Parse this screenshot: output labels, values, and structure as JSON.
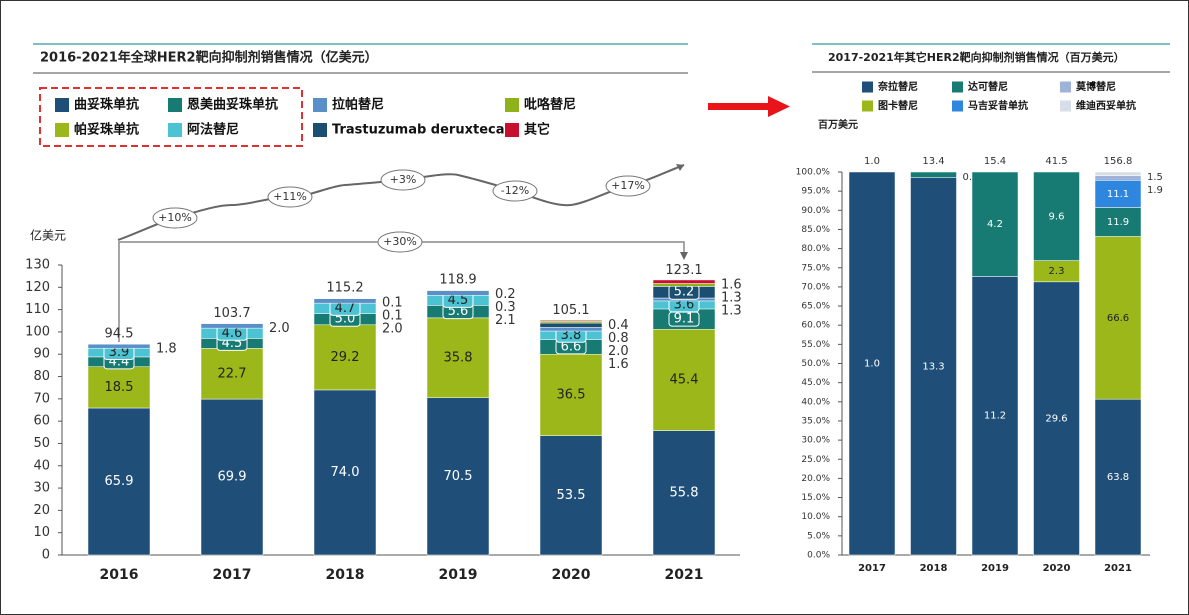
{
  "chart_data": [
    {
      "type": "stacked_bar",
      "title": "2016-2021年全球HER2靶向抑制剂销售情况（亿美元）",
      "y_label": "亿美元",
      "categories": [
        "2016",
        "2017",
        "2018",
        "2019",
        "2020",
        "2021"
      ],
      "ylim": [
        0,
        130
      ],
      "yticks": [
        0,
        10,
        20,
        30,
        40,
        50,
        60,
        70,
        80,
        90,
        100,
        110,
        120,
        130
      ],
      "grid": false,
      "series": [
        {
          "name": "曲妥珠单抗",
          "color": "#1f4e79",
          "values": [
            65.9,
            69.9,
            74.0,
            70.5,
            53.5,
            55.8
          ],
          "value_labels": [
            "65.9",
            "69.9",
            "74.0",
            "70.5",
            "53.5",
            "55.8"
          ]
        },
        {
          "name": "帕妥珠单抗",
          "color": "#9cb71a",
          "values": [
            18.5,
            22.7,
            29.2,
            35.8,
            36.5,
            45.4
          ]
        },
        {
          "name": "恩美曲妥珠单抗",
          "color": "#177a73",
          "values": [
            4.4,
            4.5,
            5.0,
            5.6,
            6.6,
            9.1
          ],
          "value_labels": [
            "4.4",
            "4.5",
            "5.0",
            "5.6",
            "6.6",
            "9.1"
          ]
        },
        {
          "name": "阿法替尼",
          "color": "#4cc3d3",
          "values": [
            3.9,
            4.6,
            4.7,
            4.5,
            3.8,
            3.6
          ]
        },
        {
          "name": "拉帕替尼",
          "color": "#5b8fc9",
          "values": [
            1.8,
            2.0,
            2.0,
            2.1,
            1.6,
            1.3
          ],
          "value_labels": [
            "1.8",
            "2.0",
            "2.0",
            "2.1",
            "1.6",
            "1.3"
          ]
        },
        {
          "name": "Trastuzumab deruxtecan",
          "color": "#1a4f72",
          "values": [
            null,
            null,
            null,
            null,
            2.0,
            5.2
          ],
          "value_labels": [
            null,
            null,
            null,
            null,
            "2.0",
            "5.2"
          ]
        },
        {
          "name": "吡咯替尼",
          "color": "#8fb21a",
          "values": [
            null,
            null,
            0.1,
            0.3,
            0.8,
            1.3
          ]
        },
        {
          "name": "其它",
          "color": "#c8102e",
          "values": [
            null,
            null,
            0.1,
            0.2,
            0.4,
            1.6
          ]
        }
      ],
      "totals": [
        94.5,
        103.7,
        115.2,
        118.9,
        105.1,
        123.1
      ],
      "annotations": [
        "+10%",
        "+11%",
        "+3%",
        "-12%",
        "+17%",
        "+30%"
      ]
    },
    {
      "type": "percent_stacked_bar",
      "title": "2017-2021年其它HER2靶向抑制剂销售情况（百万美元）",
      "y_label": "百万美元",
      "categories": [
        "2017",
        "2018",
        "2019",
        "2020",
        "2021"
      ],
      "ylim": [
        0,
        100
      ],
      "yticks": [
        {
          "value": 0,
          "label": "0.0%"
        },
        {
          "value": 5,
          "label": "5.0%"
        },
        {
          "value": 10,
          "label": "10.0%"
        },
        {
          "value": 15,
          "label": "15.0%"
        },
        {
          "value": 20,
          "label": "20.0%"
        },
        {
          "value": 25,
          "label": "25.0%"
        },
        {
          "value": 30,
          "label": "30.0%"
        },
        {
          "value": 35,
          "label": "35.0%"
        },
        {
          "value": 40,
          "label": "40.0%"
        },
        {
          "value": 45,
          "label": "45.0%"
        },
        {
          "value": 50,
          "label": "50.0%"
        },
        {
          "value": 55,
          "label": "55.0%"
        },
        {
          "value": 60,
          "label": "60.0%"
        },
        {
          "value": 65,
          "label": "65.0%"
        },
        {
          "value": 70,
          "label": "70.0%"
        },
        {
          "value": 75,
          "label": "75.0%"
        },
        {
          "value": 80,
          "label": "80.0%"
        },
        {
          "value": 85,
          "label": "85.0%"
        },
        {
          "value": 90,
          "label": "90.0%"
        },
        {
          "value": 95,
          "label": "95.0%"
        },
        {
          "value": 100,
          "label": "100.0%"
        }
      ],
      "grid": false,
      "series": [
        {
          "name": "奈拉替尼",
          "color": "#1f4e79",
          "values": [
            1.0,
            13.3,
            11.2,
            29.6,
            63.8
          ],
          "value_labels": [
            "1.0",
            "13.3",
            "11.2",
            "29.6",
            "63.8"
          ]
        },
        {
          "name": "达可替尼",
          "color": "#177a73",
          "values": [
            null,
            0.2,
            4.2,
            9.6,
            11.9
          ]
        },
        {
          "name": "莫博替尼",
          "color": "#9fb3d8",
          "values": [
            null,
            null,
            null,
            null,
            1.9
          ]
        },
        {
          "name": "图卡替尼",
          "color": "#9cb71a",
          "values": [
            null,
            null,
            null,
            2.3,
            66.6
          ]
        },
        {
          "name": "马吉妥昔单抗",
          "color": "#2e86de",
          "values": [
            null,
            null,
            null,
            null,
            11.1
          ]
        },
        {
          "name": "维迪西妥单抗",
          "color": "#d7dee7",
          "values": [
            null,
            null,
            null,
            null,
            1.5
          ]
        }
      ],
      "totals": [
        1.0,
        13.4,
        15.4,
        41.5,
        156.8
      ],
      "total_labels": [
        "1.0",
        "13.4",
        "15.4",
        "41.5",
        "156.8"
      ]
    }
  ]
}
